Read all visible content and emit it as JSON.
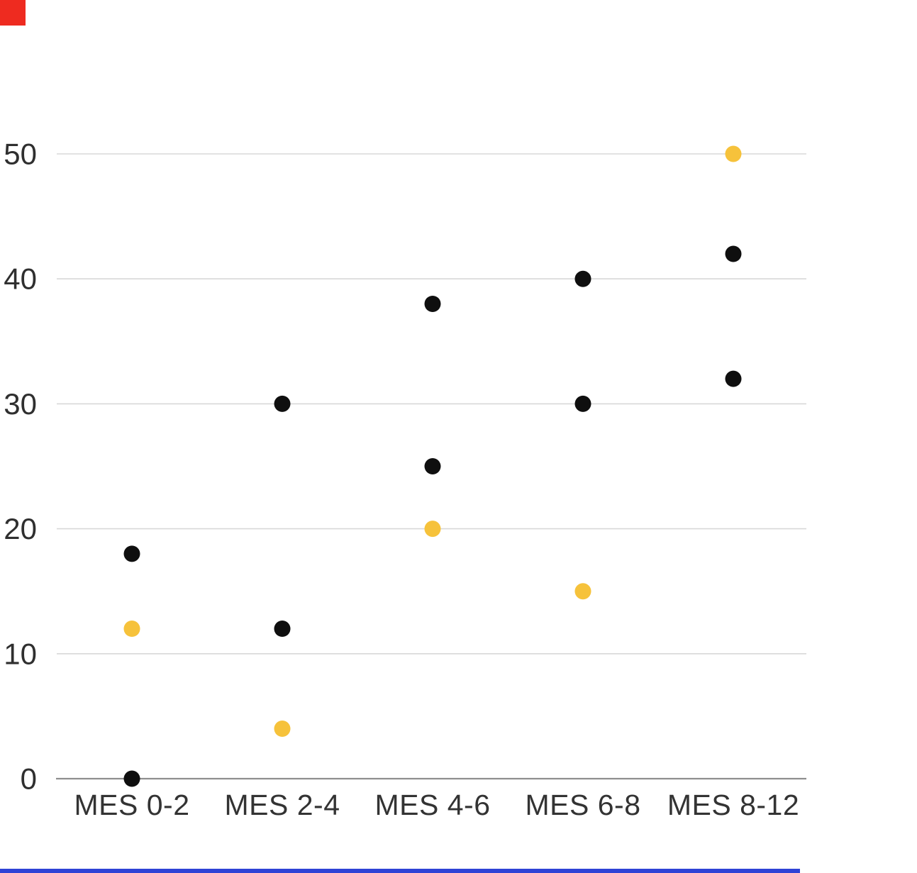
{
  "page": {
    "background_color": "#ffffff"
  },
  "decorations": {
    "corner_square_color": "#ee2b20",
    "bottom_line_color": "#2f43d6"
  },
  "chart_data": {
    "type": "scatter",
    "title": "",
    "xlabel": "",
    "ylabel": "",
    "categories": [
      "MES 0-2",
      "MES 2-4",
      "MES 4-6",
      "MES 6-8",
      "MES 8-12"
    ],
    "series": [
      {
        "name": "black-upper-dots",
        "color": "#0f0f0f",
        "values": [
          18,
          30,
          38,
          40,
          42
        ]
      },
      {
        "name": "black-lower-dots",
        "color": "#0f0f0f",
        "values": [
          0,
          12,
          25,
          30,
          32
        ]
      },
      {
        "name": "yellow-dots",
        "color": "#f6c23b",
        "values": [
          12,
          4,
          20,
          15,
          50
        ]
      }
    ],
    "yticks": [
      0,
      10,
      20,
      30,
      40,
      50
    ],
    "ylim": [
      0,
      55
    ],
    "grid": "horizontal-only",
    "gridline_color": "#d8d8d8",
    "axis_line_color": "#8e8e8e",
    "legend": "none"
  }
}
